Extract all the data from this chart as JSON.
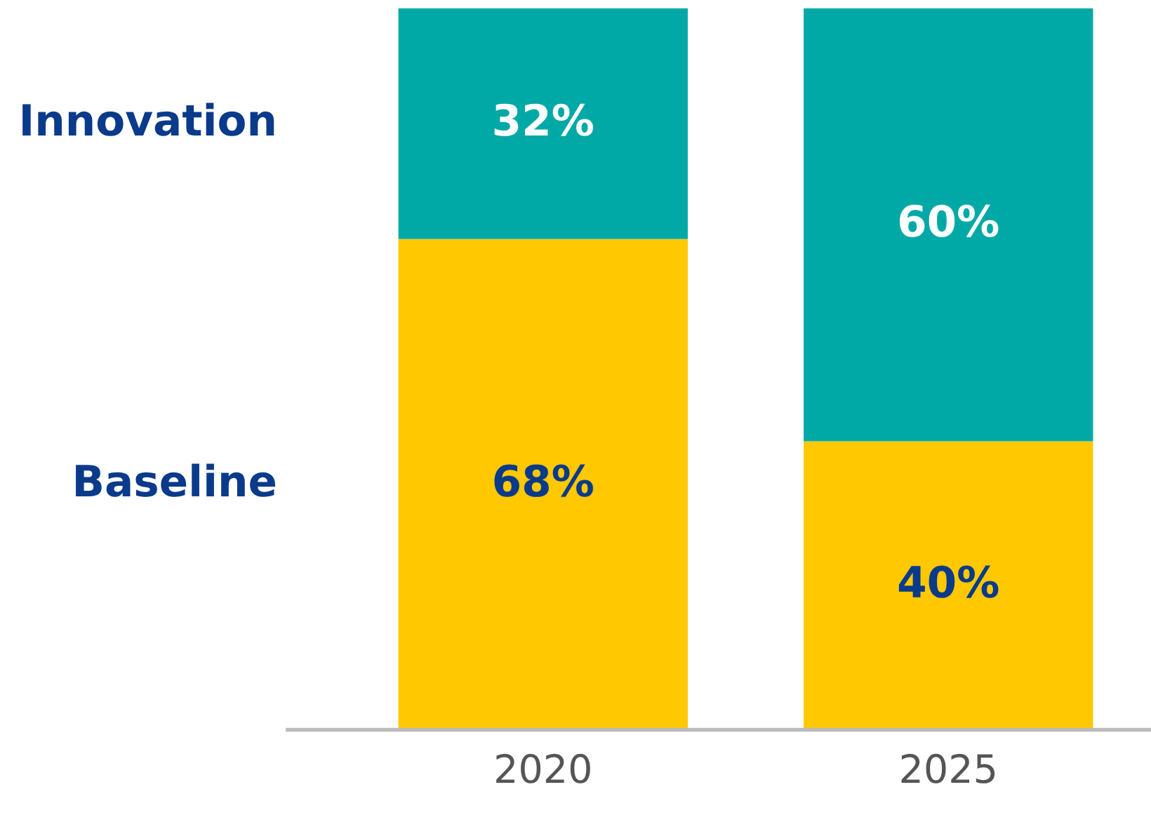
{
  "chart_data": {
    "type": "bar",
    "stacked": true,
    "categories": [
      "2020",
      "2025"
    ],
    "ylim": [
      0,
      100
    ],
    "tick_labels": "x",
    "grid": false,
    "legend": false,
    "series": [
      {
        "name": "Baseline",
        "color": "#ffc800",
        "values": [
          68,
          40
        ],
        "value_labels": [
          "68%",
          "40%"
        ]
      },
      {
        "name": "Innovation",
        "color": "#00a9a6",
        "values": [
          32,
          60
        ],
        "value_labels": [
          "32%",
          "60%"
        ]
      }
    ]
  }
}
